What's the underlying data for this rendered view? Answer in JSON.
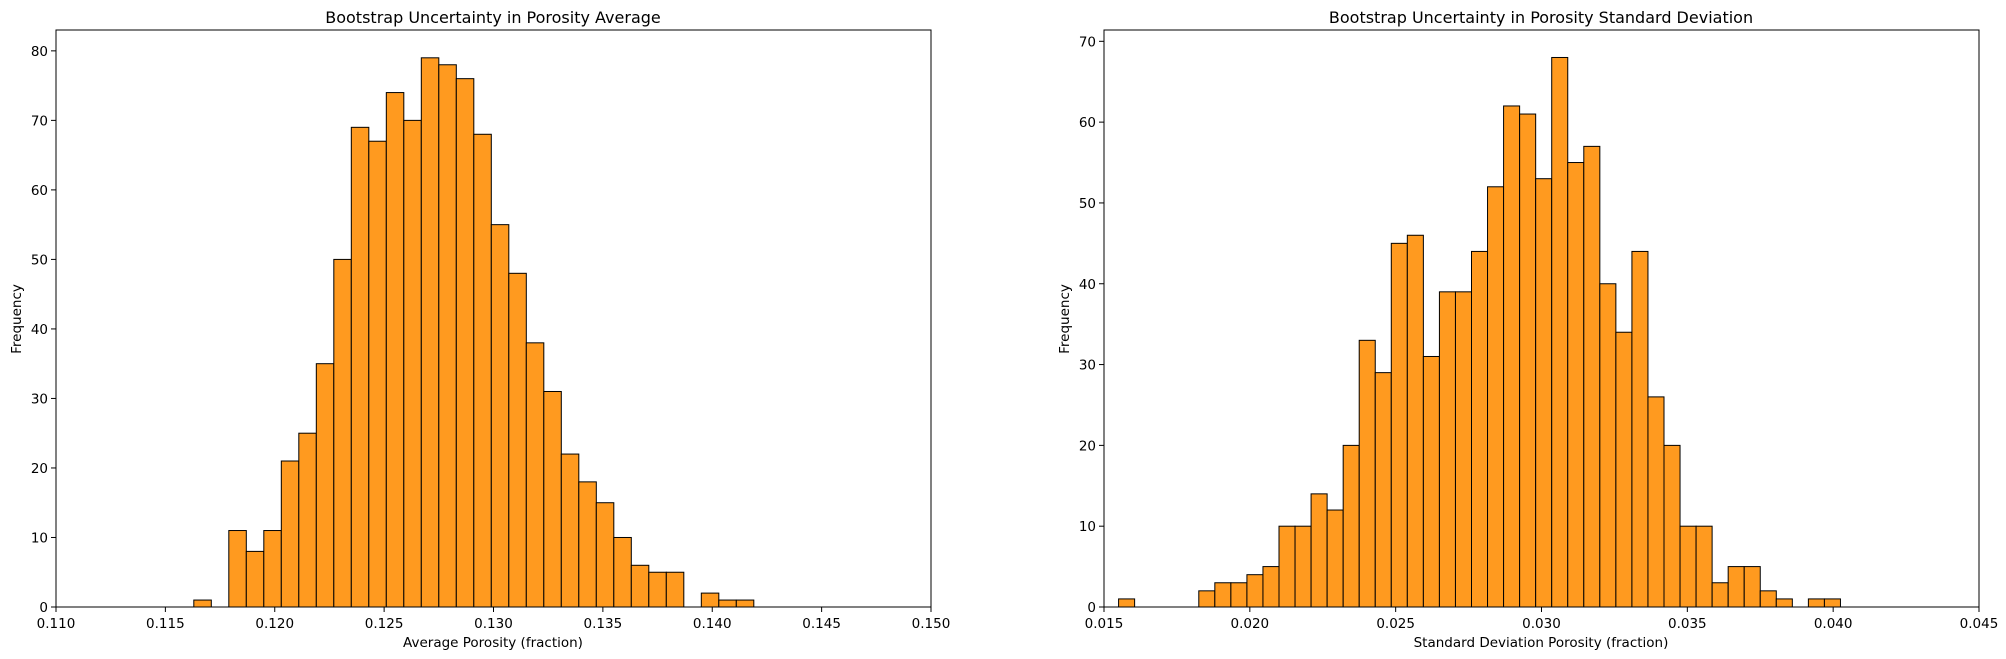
{
  "chart_data": [
    {
      "type": "bar",
      "title": "Bootstrap Uncertainty in Porosity Average",
      "xlabel": "Average Porosity (fraction)",
      "ylabel": "Frequency",
      "xlim": [
        0.11,
        0.15
      ],
      "ylim": [
        0,
        83
      ],
      "x_ticks": [
        "0.110",
        "0.115",
        "0.120",
        "0.125",
        "0.130",
        "0.135",
        "0.140",
        "0.145",
        "0.150"
      ],
      "y_ticks": [
        "0",
        "10",
        "20",
        "30",
        "40",
        "50",
        "60",
        "70",
        "80"
      ],
      "bar_color": "#ff9a1f",
      "edge_color": "#000000",
      "bins": [
        {
          "x0": 0.1163,
          "x1": 0.1171,
          "count": 1
        },
        {
          "x0": 0.1171,
          "x1": 0.1179,
          "count": 0
        },
        {
          "x0": 0.1179,
          "x1": 0.1187,
          "count": 11
        },
        {
          "x0": 0.1187,
          "x1": 0.1195,
          "count": 8
        },
        {
          "x0": 0.1195,
          "x1": 0.1203,
          "count": 11
        },
        {
          "x0": 0.1203,
          "x1": 0.1211,
          "count": 21
        },
        {
          "x0": 0.1211,
          "x1": 0.1219,
          "count": 25
        },
        {
          "x0": 0.1219,
          "x1": 0.1227,
          "count": 35
        },
        {
          "x0": 0.1227,
          "x1": 0.1235,
          "count": 50
        },
        {
          "x0": 0.1235,
          "x1": 0.1243,
          "count": 69
        },
        {
          "x0": 0.1243,
          "x1": 0.1251,
          "count": 67
        },
        {
          "x0": 0.1251,
          "x1": 0.1259,
          "count": 74
        },
        {
          "x0": 0.1259,
          "x1": 0.1267,
          "count": 70
        },
        {
          "x0": 0.1267,
          "x1": 0.1275,
          "count": 79
        },
        {
          "x0": 0.1275,
          "x1": 0.1283,
          "count": 78
        },
        {
          "x0": 0.1283,
          "x1": 0.1291,
          "count": 76
        },
        {
          "x0": 0.1291,
          "x1": 0.1299,
          "count": 68
        },
        {
          "x0": 0.1299,
          "x1": 0.1307,
          "count": 55
        },
        {
          "x0": 0.1307,
          "x1": 0.1315,
          "count": 48
        },
        {
          "x0": 0.1315,
          "x1": 0.1323,
          "count": 38
        },
        {
          "x0": 0.1323,
          "x1": 0.1331,
          "count": 31
        },
        {
          "x0": 0.1331,
          "x1": 0.1339,
          "count": 22
        },
        {
          "x0": 0.1339,
          "x1": 0.1347,
          "count": 18
        },
        {
          "x0": 0.1347,
          "x1": 0.1355,
          "count": 15
        },
        {
          "x0": 0.1355,
          "x1": 0.1363,
          "count": 10
        },
        {
          "x0": 0.1363,
          "x1": 0.1371,
          "count": 6
        },
        {
          "x0": 0.1371,
          "x1": 0.1379,
          "count": 5
        },
        {
          "x0": 0.1379,
          "x1": 0.1387,
          "count": 5
        },
        {
          "x0": 0.1387,
          "x1": 0.1395,
          "count": 0
        },
        {
          "x0": 0.1395,
          "x1": 0.1403,
          "count": 2
        },
        {
          "x0": 0.1403,
          "x1": 0.1411,
          "count": 1
        },
        {
          "x0": 0.1411,
          "x1": 0.1419,
          "count": 1
        }
      ]
    },
    {
      "type": "bar",
      "title": "Bootstrap Uncertainty in Porosity Standard Deviation",
      "xlabel": "Standard Deviation Porosity (fraction)",
      "ylabel": "Frequency",
      "xlim": [
        0.015,
        0.045
      ],
      "ylim": [
        0,
        71.4
      ],
      "x_ticks": [
        "0.015",
        "0.020",
        "0.025",
        "0.030",
        "0.035",
        "0.040",
        "0.045"
      ],
      "y_ticks": [
        "0",
        "10",
        "20",
        "30",
        "40",
        "50",
        "60",
        "70"
      ],
      "bar_color": "#ff9a1f",
      "edge_color": "#000000",
      "bins": [
        {
          "x0": 0.0155,
          "x1": 0.01605,
          "count": 1
        },
        {
          "x0": 0.01605,
          "x1": 0.0166,
          "count": 0
        },
        {
          "x0": 0.0166,
          "x1": 0.01715,
          "count": 0
        },
        {
          "x0": 0.01715,
          "x1": 0.0177,
          "count": 0
        },
        {
          "x0": 0.0177,
          "x1": 0.01825,
          "count": 0
        },
        {
          "x0": 0.01825,
          "x1": 0.0188,
          "count": 2
        },
        {
          "x0": 0.0188,
          "x1": 0.01935,
          "count": 3
        },
        {
          "x0": 0.01935,
          "x1": 0.0199,
          "count": 3
        },
        {
          "x0": 0.0199,
          "x1": 0.02045,
          "count": 4
        },
        {
          "x0": 0.02045,
          "x1": 0.021,
          "count": 5
        },
        {
          "x0": 0.021,
          "x1": 0.02155,
          "count": 10
        },
        {
          "x0": 0.02155,
          "x1": 0.0221,
          "count": 10
        },
        {
          "x0": 0.0221,
          "x1": 0.02265,
          "count": 14
        },
        {
          "x0": 0.02265,
          "x1": 0.0232,
          "count": 12
        },
        {
          "x0": 0.0232,
          "x1": 0.02375,
          "count": 20
        },
        {
          "x0": 0.02375,
          "x1": 0.0243,
          "count": 33
        },
        {
          "x0": 0.0243,
          "x1": 0.02485,
          "count": 29
        },
        {
          "x0": 0.02485,
          "x1": 0.0254,
          "count": 45
        },
        {
          "x0": 0.0254,
          "x1": 0.02595,
          "count": 46
        },
        {
          "x0": 0.02595,
          "x1": 0.0265,
          "count": 31
        },
        {
          "x0": 0.0265,
          "x1": 0.02705,
          "count": 39
        },
        {
          "x0": 0.02705,
          "x1": 0.0276,
          "count": 39
        },
        {
          "x0": 0.0276,
          "x1": 0.02815,
          "count": 44
        },
        {
          "x0": 0.02815,
          "x1": 0.0287,
          "count": 52
        },
        {
          "x0": 0.0287,
          "x1": 0.02925,
          "count": 62
        },
        {
          "x0": 0.02925,
          "x1": 0.0298,
          "count": 61
        },
        {
          "x0": 0.0298,
          "x1": 0.03035,
          "count": 53
        },
        {
          "x0": 0.03035,
          "x1": 0.0309,
          "count": 68
        },
        {
          "x0": 0.0309,
          "x1": 0.03145,
          "count": 55
        },
        {
          "x0": 0.03145,
          "x1": 0.032,
          "count": 57
        },
        {
          "x0": 0.032,
          "x1": 0.03255,
          "count": 40
        },
        {
          "x0": 0.03255,
          "x1": 0.0331,
          "count": 34
        },
        {
          "x0": 0.0331,
          "x1": 0.03365,
          "count": 44
        },
        {
          "x0": 0.03365,
          "x1": 0.0342,
          "count": 26
        },
        {
          "x0": 0.0342,
          "x1": 0.03475,
          "count": 20
        },
        {
          "x0": 0.03475,
          "x1": 0.0353,
          "count": 10
        },
        {
          "x0": 0.0353,
          "x1": 0.03585,
          "count": 10
        },
        {
          "x0": 0.03585,
          "x1": 0.0364,
          "count": 3
        },
        {
          "x0": 0.0364,
          "x1": 0.03695,
          "count": 5
        },
        {
          "x0": 0.03695,
          "x1": 0.0375,
          "count": 5
        },
        {
          "x0": 0.0375,
          "x1": 0.03805,
          "count": 2
        },
        {
          "x0": 0.03805,
          "x1": 0.0386,
          "count": 1
        },
        {
          "x0": 0.0386,
          "x1": 0.03915,
          "count": 0
        },
        {
          "x0": 0.03915,
          "x1": 0.0397,
          "count": 1
        },
        {
          "x0": 0.0397,
          "x1": 0.04025,
          "count": 1
        }
      ]
    }
  ]
}
